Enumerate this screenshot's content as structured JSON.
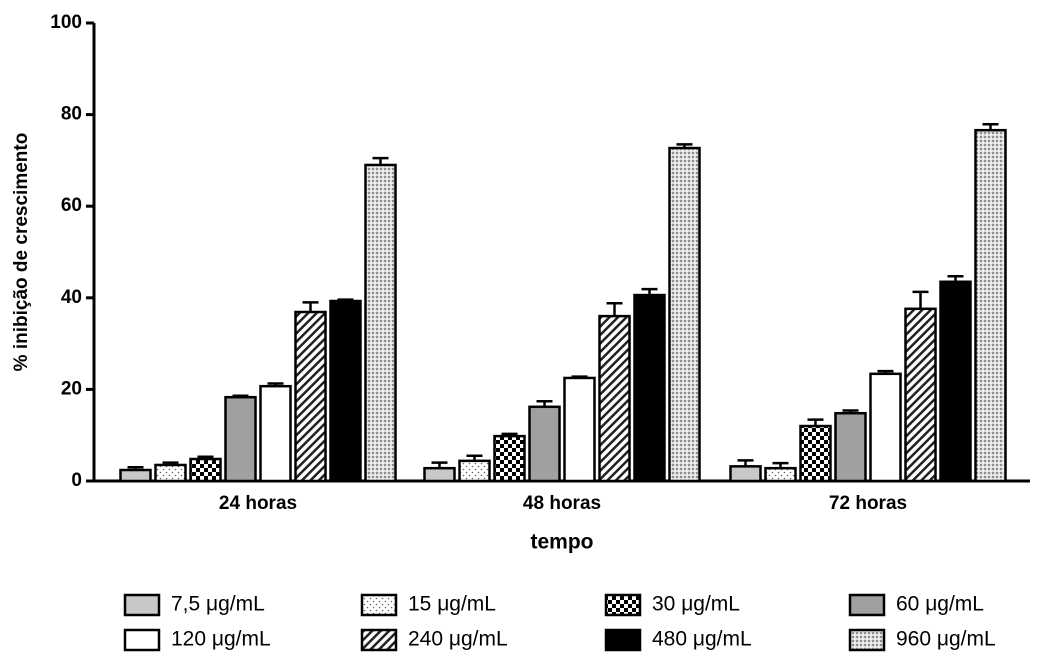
{
  "chart_data": {
    "type": "bar",
    "y_label": "% inibição de crescimento",
    "x_label": "tempo",
    "categories": [
      "24 horas",
      "48 horas",
      "72 horas"
    ],
    "ylim": [
      0,
      100
    ],
    "yticks": [
      0,
      20,
      40,
      60,
      80,
      100
    ],
    "series": [
      {
        "name": "7,5 μg/mL",
        "color": "#c8c8c8",
        "pattern": "solid",
        "values": [
          2.4,
          2.8,
          3.2
        ],
        "errors": [
          0.6,
          1.2,
          1.3
        ]
      },
      {
        "name": "15 μg/mL",
        "color": "#ffffff",
        "pattern": "sparse-dots",
        "values": [
          3.5,
          4.4,
          2.8
        ],
        "errors": [
          0.5,
          1.1,
          1.1
        ]
      },
      {
        "name": "30 μg/mL",
        "color": "#ffffff",
        "pattern": "checker",
        "values": [
          4.8,
          9.8,
          12.0
        ],
        "errors": [
          0.5,
          0.5,
          1.4
        ]
      },
      {
        "name": "60 μg/mL",
        "color": "#a0a0a0",
        "pattern": "solid",
        "values": [
          18.3,
          16.2,
          14.8
        ],
        "errors": [
          0.3,
          1.2,
          0.6
        ]
      },
      {
        "name": "120 μg/mL",
        "color": "#ffffff",
        "pattern": "solid",
        "values": [
          20.7,
          22.5,
          23.4
        ],
        "errors": [
          0.6,
          0.3,
          0.6
        ]
      },
      {
        "name": "240 μg/mL",
        "color": "#ffffff",
        "pattern": "hatch",
        "values": [
          36.9,
          36.0,
          37.6
        ],
        "errors": [
          2.1,
          2.8,
          3.7
        ]
      },
      {
        "name": "480 μg/mL",
        "color": "#000000",
        "pattern": "solid",
        "values": [
          39.3,
          40.6,
          43.5
        ],
        "errors": [
          0.3,
          1.3,
          1.2
        ]
      },
      {
        "name": "960 μg/mL",
        "color": "#ffffff",
        "pattern": "dense-dots",
        "values": [
          69.0,
          72.7,
          76.6
        ],
        "errors": [
          1.5,
          0.8,
          1.3
        ]
      }
    ]
  }
}
